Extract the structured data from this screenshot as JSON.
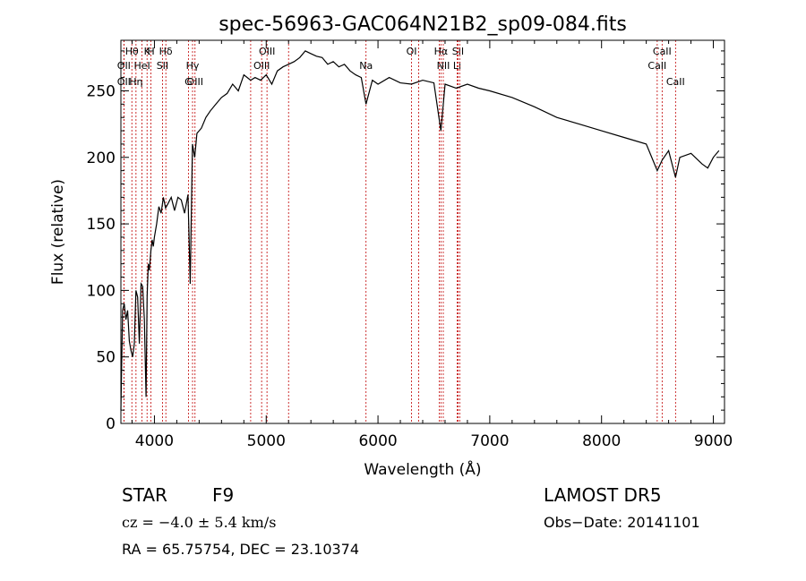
{
  "chart_data": {
    "type": "line",
    "title": "spec-56963-GAC064N21B2_sp09-084.fits",
    "xlabel": "Wavelength (Å)",
    "ylabel": "Flux (relative)",
    "xlim": [
      3700,
      9100
    ],
    "ylim": [
      0,
      288
    ],
    "x_ticks": [
      4000,
      5000,
      6000,
      7000,
      8000,
      9000
    ],
    "y_ticks": [
      0,
      50,
      100,
      150,
      200,
      250
    ],
    "grid": false,
    "series": [
      {
        "color": "#000000",
        "x": [
          3700,
          3715,
          3730,
          3745,
          3760,
          3775,
          3790,
          3805,
          3820,
          3835,
          3850,
          3865,
          3880,
          3895,
          3910,
          3925,
          3935,
          3945,
          3955,
          3968,
          3980,
          3990,
          4000,
          4020,
          4040,
          4060,
          4080,
          4100,
          4120,
          4150,
          4180,
          4210,
          4240,
          4270,
          4300,
          4320,
          4340,
          4360,
          4380,
          4420,
          4460,
          4500,
          4550,
          4600,
          4650,
          4700,
          4750,
          4800,
          4861,
          4900,
          4950,
          5000,
          5050,
          5100,
          5150,
          5200,
          5250,
          5300,
          5350,
          5400,
          5450,
          5500,
          5550,
          5600,
          5650,
          5700,
          5750,
          5800,
          5850,
          5893,
          5950,
          6000,
          6100,
          6200,
          6300,
          6400,
          6500,
          6563,
          6600,
          6700,
          6800,
          6900,
          7000,
          7200,
          7400,
          7600,
          7800,
          8000,
          8200,
          8400,
          8498,
          8542,
          8600,
          8662,
          8700,
          8800,
          8900,
          8950,
          9000,
          9050
        ],
        "y": [
          10,
          85,
          90,
          78,
          85,
          62,
          55,
          50,
          60,
          100,
          95,
          60,
          105,
          103,
          78,
          20,
          96,
          120,
          115,
          130,
          138,
          133,
          140,
          150,
          163,
          158,
          170,
          162,
          165,
          170,
          160,
          170,
          168,
          158,
          172,
          105,
          210,
          200,
          218,
          222,
          230,
          235,
          240,
          245,
          248,
          255,
          250,
          262,
          258,
          260,
          258,
          262,
          255,
          265,
          268,
          270,
          272,
          275,
          280,
          278,
          276,
          275,
          270,
          272,
          268,
          270,
          265,
          262,
          260,
          240,
          258,
          255,
          260,
          256,
          255,
          258,
          256,
          220,
          255,
          252,
          255,
          252,
          250,
          245,
          238,
          230,
          225,
          220,
          215,
          210,
          190,
          198,
          205,
          185,
          200,
          203,
          195,
          192,
          200,
          205
        ]
      }
    ],
    "lines": [
      {
        "label": "Hθ",
        "x": 3798
      },
      {
        "label": "K",
        "x": 3934
      },
      {
        "label": "Hδ",
        "x": 4102
      },
      {
        "label": "OII",
        "x": 3727
      },
      {
        "label": "HeI",
        "x": 3889
      },
      {
        "label": "SII",
        "x": 4072
      },
      {
        "label": "OIII",
        "x": 4363
      },
      {
        "label": "OII",
        "x": 3727
      },
      {
        "label": "Hη",
        "x": 3835
      },
      {
        "label": "H",
        "x": 3969
      },
      {
        "label": "Hγ",
        "x": 4341
      },
      {
        "label": "G",
        "x": 4304
      },
      {
        "label": "OIII",
        "x": 5007
      },
      {
        "label": "OIII",
        "x": 4959
      },
      {
        "label": "Na",
        "x": 5893
      },
      {
        "label": "OI",
        "x": 6300
      },
      {
        "label": "Hα",
        "x": 6563
      },
      {
        "label": "SII",
        "x": 6716
      },
      {
        "label": "NII",
        "x": 6584
      },
      {
        "label": "Li",
        "x": 6708
      },
      {
        "label": "CaII",
        "x": 8542
      },
      {
        "label": "CaII",
        "x": 8498
      },
      {
        "label": "CaII",
        "x": 8662
      }
    ],
    "extra_lines_x": [
      4861,
      5200,
      6364,
      6548,
      6731
    ]
  },
  "info": {
    "object_class": "STAR",
    "subclass": "F9",
    "survey": "LAMOST DR5",
    "redshift_line": "cz = −4.0 ± 5.4 km/s",
    "obs_date": "Obs−Date: 20141101",
    "coords": "RA =  65.75754, DEC =  23.10374"
  }
}
